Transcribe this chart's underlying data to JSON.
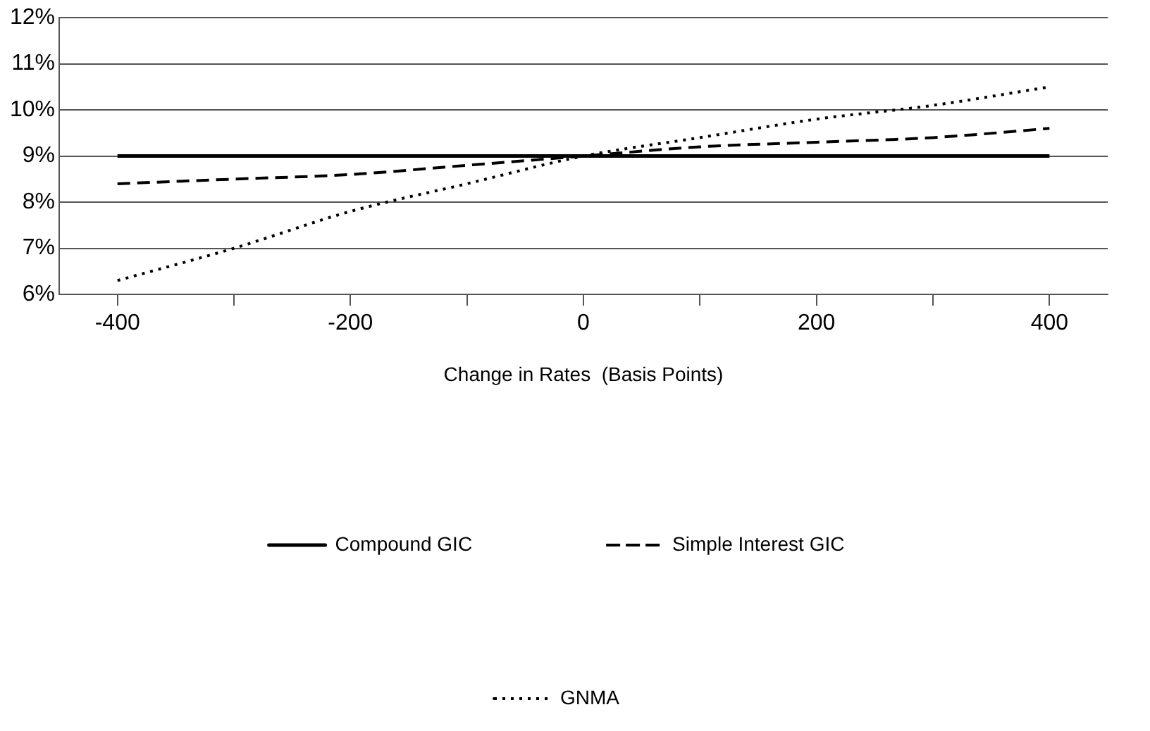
{
  "chart_data": {
    "type": "line",
    "xlabel": "Change in Rates  (Basis Points)",
    "x": [
      -400,
      -300,
      -200,
      -100,
      0,
      100,
      200,
      300,
      400
    ],
    "series": [
      {
        "name": "Compound GIC",
        "color": "#000000",
        "line_style": "solid",
        "values": [
          9,
          9,
          9,
          9,
          9,
          9,
          9,
          9,
          9
        ]
      },
      {
        "name": "Simple Interest GIC",
        "color": "#000000",
        "line_style": "dashed",
        "values": [
          8.4,
          8.5,
          8.6,
          8.8,
          9.0,
          9.2,
          9.3,
          9.4,
          9.6
        ]
      },
      {
        "name": "GNMA",
        "color": "#000000",
        "line_style": "dotted",
        "values": [
          6.3,
          7.0,
          7.8,
          8.4,
          9.0,
          9.4,
          9.8,
          10.1,
          10.5
        ]
      }
    ],
    "xlim": [
      -450,
      450
    ],
    "xticks": [
      -400,
      {
        "value": -300,
        "label": null
      },
      -200,
      {
        "value": -100,
        "label": null
      },
      0,
      {
        "value": 100,
        "label": null
      },
      200,
      {
        "value": 300,
        "label": null
      },
      400
    ],
    "ylim": [
      6,
      12
    ],
    "yticks": [
      {
        "value": 6,
        "label": "6%"
      },
      {
        "value": 7,
        "label": "7%"
      },
      {
        "value": 8,
        "label": "8%"
      },
      {
        "value": 9,
        "label": "9%"
      },
      {
        "value": 10,
        "label": "10%"
      },
      {
        "value": 11,
        "label": "11%"
      },
      {
        "value": 12,
        "label": "12%"
      }
    ],
    "grid": "y",
    "legend": "bottom",
    "marker": "none"
  }
}
